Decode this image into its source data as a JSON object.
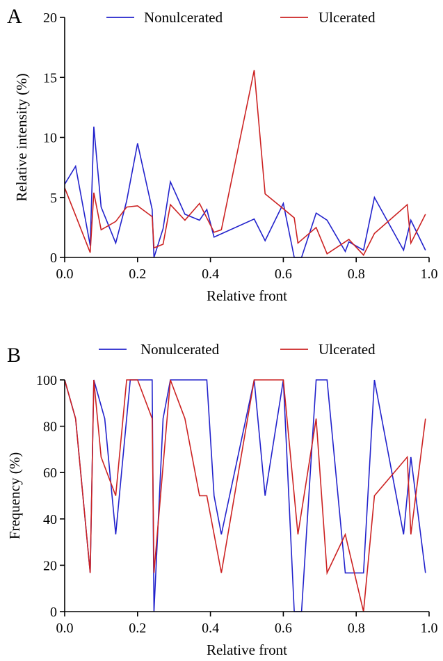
{
  "chart_data": [
    {
      "type": "line",
      "panel": "A",
      "xlabel": "Relative front",
      "ylabel": "Relative intensity (%)",
      "xlim": [
        0.0,
        1.0
      ],
      "ylim": [
        0,
        20
      ],
      "xticks": [
        "0.0",
        "0.2",
        "0.4",
        "0.6",
        "0.8",
        "1.0"
      ],
      "yticks": [
        "0",
        "5",
        "10",
        "15",
        "20"
      ],
      "legend": "top",
      "grid": false,
      "series": [
        {
          "name": "Nonulcerated",
          "color": "#2222cc",
          "points": [
            [
              0.0,
              6.1
            ],
            [
              0.03,
              7.6
            ],
            [
              0.07,
              1.0
            ],
            [
              0.08,
              10.9
            ],
            [
              0.1,
              4.2
            ],
            [
              0.14,
              1.2
            ],
            [
              0.17,
              4.7
            ],
            [
              0.2,
              9.5
            ],
            [
              0.24,
              4.0
            ],
            [
              0.245,
              0.0
            ],
            [
              0.27,
              2.4
            ],
            [
              0.29,
              6.3
            ],
            [
              0.33,
              3.6
            ],
            [
              0.37,
              3.1
            ],
            [
              0.39,
              4.0
            ],
            [
              0.41,
              1.7
            ],
            [
              0.52,
              3.2
            ],
            [
              0.55,
              1.4
            ],
            [
              0.6,
              4.5
            ],
            [
              0.63,
              0.0
            ],
            [
              0.65,
              0.0
            ],
            [
              0.69,
              3.7
            ],
            [
              0.72,
              3.1
            ],
            [
              0.77,
              0.5
            ],
            [
              0.78,
              1.3
            ],
            [
              0.82,
              0.6
            ],
            [
              0.85,
              5.0
            ],
            [
              0.93,
              0.6
            ],
            [
              0.95,
              3.1
            ],
            [
              0.99,
              0.6
            ]
          ]
        },
        {
          "name": "Ulcerated",
          "color": "#cc2222",
          "points": [
            [
              0.0,
              5.8
            ],
            [
              0.03,
              3.5
            ],
            [
              0.07,
              0.4
            ],
            [
              0.08,
              5.4
            ],
            [
              0.1,
              2.3
            ],
            [
              0.14,
              3.0
            ],
            [
              0.17,
              4.2
            ],
            [
              0.2,
              4.3
            ],
            [
              0.24,
              3.4
            ],
            [
              0.245,
              0.8
            ],
            [
              0.27,
              1.1
            ],
            [
              0.29,
              4.4
            ],
            [
              0.33,
              3.1
            ],
            [
              0.37,
              4.5
            ],
            [
              0.41,
              2.1
            ],
            [
              0.43,
              2.3
            ],
            [
              0.52,
              15.6
            ],
            [
              0.55,
              5.3
            ],
            [
              0.59,
              4.3
            ],
            [
              0.63,
              3.3
            ],
            [
              0.64,
              1.2
            ],
            [
              0.69,
              2.5
            ],
            [
              0.72,
              0.3
            ],
            [
              0.78,
              1.5
            ],
            [
              0.82,
              0.2
            ],
            [
              0.85,
              2.0
            ],
            [
              0.94,
              4.4
            ],
            [
              0.95,
              1.2
            ],
            [
              0.99,
              3.6
            ]
          ]
        }
      ]
    },
    {
      "type": "line",
      "panel": "B",
      "xlabel": "Relative front",
      "ylabel": "Frequency (%)",
      "xlim": [
        0.0,
        1.0
      ],
      "ylim": [
        0,
        100
      ],
      "xticks": [
        "0.0",
        "0.2",
        "0.4",
        "0.6",
        "0.8",
        "1.0"
      ],
      "yticks": [
        "0",
        "20",
        "40",
        "60",
        "80",
        "100"
      ],
      "legend": "top",
      "grid": false,
      "series": [
        {
          "name": "Nonulcerated",
          "color": "#2222cc",
          "points": [
            [
              0.0,
              100
            ],
            [
              0.03,
              83.3
            ],
            [
              0.07,
              16.7
            ],
            [
              0.08,
              100
            ],
            [
              0.11,
              83.3
            ],
            [
              0.14,
              33.3
            ],
            [
              0.18,
              100
            ],
            [
              0.24,
              100
            ],
            [
              0.245,
              0
            ],
            [
              0.27,
              83.3
            ],
            [
              0.29,
              100
            ],
            [
              0.39,
              100
            ],
            [
              0.41,
              50
            ],
            [
              0.43,
              33.3
            ],
            [
              0.52,
              100
            ],
            [
              0.55,
              50
            ],
            [
              0.6,
              100
            ],
            [
              0.63,
              0
            ],
            [
              0.65,
              0
            ],
            [
              0.69,
              100
            ],
            [
              0.72,
              100
            ],
            [
              0.77,
              16.7
            ],
            [
              0.82,
              16.7
            ],
            [
              0.85,
              100
            ],
            [
              0.93,
              33.3
            ],
            [
              0.95,
              66.7
            ],
            [
              0.99,
              16.7
            ]
          ]
        },
        {
          "name": "Ulcerated",
          "color": "#cc2222",
          "points": [
            [
              0.0,
              100
            ],
            [
              0.03,
              83.3
            ],
            [
              0.07,
              16.7
            ],
            [
              0.08,
              100
            ],
            [
              0.1,
              66.7
            ],
            [
              0.14,
              50
            ],
            [
              0.17,
              100
            ],
            [
              0.2,
              100
            ],
            [
              0.24,
              83.3
            ],
            [
              0.245,
              16.7
            ],
            [
              0.29,
              100
            ],
            [
              0.33,
              83.3
            ],
            [
              0.37,
              50
            ],
            [
              0.39,
              50
            ],
            [
              0.43,
              16.7
            ],
            [
              0.52,
              100
            ],
            [
              0.59,
              100
            ],
            [
              0.6,
              100
            ],
            [
              0.64,
              33.3
            ],
            [
              0.69,
              83.3
            ],
            [
              0.72,
              16.7
            ],
            [
              0.77,
              33.3
            ],
            [
              0.82,
              0
            ],
            [
              0.85,
              50
            ],
            [
              0.94,
              66.7
            ],
            [
              0.95,
              33.3
            ],
            [
              0.99,
              83.3
            ]
          ]
        }
      ]
    }
  ]
}
